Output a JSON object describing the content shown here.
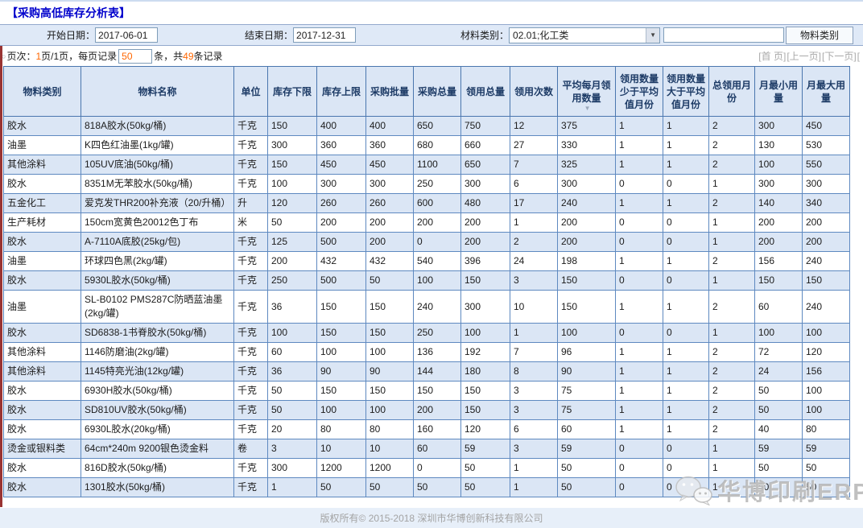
{
  "title": "【采购高低库存分析表】",
  "filters": {
    "start_date_label": "开始日期：",
    "start_date_value": "2017-06-01",
    "end_date_label": "结束日期：",
    "end_date_value": "2017-12-31",
    "material_category_label": "材料类别：",
    "material_category_value": "02.01;化工类",
    "material_filter_value": "",
    "material_type_button": "物料类别"
  },
  "pagination": {
    "bullet": "○",
    "prefix": "页次：",
    "current_page": "1",
    "suffix_pages": "页/1页，每页记录",
    "page_size": "50",
    "middle": "条，共",
    "total_records": "49",
    "suffix": "条记录",
    "links": [
      "[首 页]",
      "[上一页]",
      "[下一页]",
      "["
    ]
  },
  "table": {
    "headers": [
      "物料类别",
      "物料名称",
      "单位",
      "库存下限",
      "库存上限",
      "采购批量",
      "采购总量",
      "领用总量",
      "领用次数",
      "平均每月领用数量",
      "领用数量少于平均值月份",
      "领用数量大于平均值月份",
      "总领用月份",
      "月最小用量",
      "月最大用量"
    ],
    "sorted_column_index": 9,
    "sort_icon": "▼",
    "rows": [
      [
        "胶水",
        "818A胶水(50kg/桶)",
        "千克",
        "150",
        "400",
        "400",
        "650",
        "750",
        "12",
        "375",
        "1",
        "1",
        "2",
        "300",
        "450"
      ],
      [
        "油墨",
        "K四色红油墨(1kg/罐)",
        "千克",
        "300",
        "360",
        "360",
        "680",
        "660",
        "27",
        "330",
        "1",
        "1",
        "2",
        "130",
        "530"
      ],
      [
        "其他涂料",
        "105UV底油(50kg/桶)",
        "千克",
        "150",
        "450",
        "450",
        "1100",
        "650",
        "7",
        "325",
        "1",
        "1",
        "2",
        "100",
        "550"
      ],
      [
        "胶水",
        "8351M无苯胶水(50kg/桶)",
        "千克",
        "100",
        "300",
        "300",
        "250",
        "300",
        "6",
        "300",
        "0",
        "0",
        "1",
        "300",
        "300"
      ],
      [
        "五金化工",
        "爱克发THR200补充液（20/升桶）",
        "升",
        "120",
        "260",
        "260",
        "600",
        "480",
        "17",
        "240",
        "1",
        "1",
        "2",
        "140",
        "340"
      ],
      [
        "生产耗材",
        "150cm宽黄色20012色丁布",
        "米",
        "50",
        "200",
        "200",
        "200",
        "200",
        "1",
        "200",
        "0",
        "0",
        "1",
        "200",
        "200"
      ],
      [
        "胶水",
        "A-7110A底胶(25kg/包)",
        "千克",
        "125",
        "500",
        "200",
        "0",
        "200",
        "2",
        "200",
        "0",
        "0",
        "1",
        "200",
        "200"
      ],
      [
        "油墨",
        "环球四色黑(2kg/罐)",
        "千克",
        "200",
        "432",
        "432",
        "540",
        "396",
        "24",
        "198",
        "1",
        "1",
        "2",
        "156",
        "240"
      ],
      [
        "胶水",
        "5930L胶水(50kg/桶)",
        "千克",
        "250",
        "500",
        "50",
        "100",
        "150",
        "3",
        "150",
        "0",
        "0",
        "1",
        "150",
        "150"
      ],
      [
        "油墨",
        "SL-B0102 PMS287C防晒蓝油墨(2kg/罐)",
        "千克",
        "36",
        "150",
        "150",
        "240",
        "300",
        "10",
        "150",
        "1",
        "1",
        "2",
        "60",
        "240"
      ],
      [
        "胶水",
        "SD6838-1书脊胶水(50kg/桶)",
        "千克",
        "100",
        "150",
        "150",
        "250",
        "100",
        "1",
        "100",
        "0",
        "0",
        "1",
        "100",
        "100"
      ],
      [
        "其他涂料",
        "1146防磨油(2kg/罐)",
        "千克",
        "60",
        "100",
        "100",
        "136",
        "192",
        "7",
        "96",
        "1",
        "1",
        "2",
        "72",
        "120"
      ],
      [
        "其他涂料",
        "1145特亮光油(12kg/罐)",
        "千克",
        "36",
        "90",
        "90",
        "144",
        "180",
        "8",
        "90",
        "1",
        "1",
        "2",
        "24",
        "156"
      ],
      [
        "胶水",
        "6930H胶水(50kg/桶)",
        "千克",
        "50",
        "150",
        "150",
        "150",
        "150",
        "3",
        "75",
        "1",
        "1",
        "2",
        "50",
        "100"
      ],
      [
        "胶水",
        "SD810UV胶水(50kg/桶)",
        "千克",
        "50",
        "100",
        "100",
        "200",
        "150",
        "3",
        "75",
        "1",
        "1",
        "2",
        "50",
        "100"
      ],
      [
        "胶水",
        "6930L胶水(20kg/桶)",
        "千克",
        "20",
        "80",
        "80",
        "160",
        "120",
        "6",
        "60",
        "1",
        "1",
        "2",
        "40",
        "80"
      ],
      [
        "烫金或银料类",
        "64cm*240m 9200银色烫金料",
        "卷",
        "3",
        "10",
        "10",
        "60",
        "59",
        "3",
        "59",
        "0",
        "0",
        "1",
        "59",
        "59"
      ],
      [
        "胶水",
        "816D胶水(50kg/桶)",
        "千克",
        "300",
        "1200",
        "1200",
        "0",
        "50",
        "1",
        "50",
        "0",
        "0",
        "1",
        "50",
        "50"
      ],
      [
        "胶水",
        "1301胶水(50kg/桶)",
        "千克",
        "1",
        "50",
        "50",
        "50",
        "50",
        "1",
        "50",
        "0",
        "0",
        "1",
        "50",
        "50"
      ]
    ]
  },
  "watermark": {
    "text": "华博印刷ERP",
    "icon": "wechat-icon"
  },
  "footer": {
    "copyright": "版权所有© 2015-2018 深圳市华博创新科技有限公司"
  },
  "colors": {
    "title_blue": "#0000cc",
    "accent_orange": "#ff6600",
    "table_border": "#5e89c0",
    "row_alt": "#dbe6f5",
    "left_stripe_red": "#993433"
  }
}
